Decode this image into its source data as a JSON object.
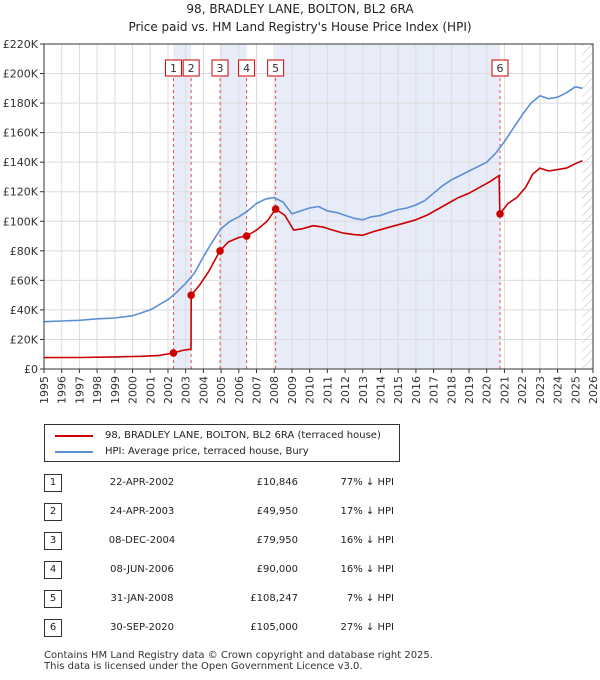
{
  "chart_data": {
    "type": "line",
    "title": "98, BRADLEY LANE, BOLTON, BL2 6RA",
    "subtitle": "Price paid vs. HM Land Registry's House Price Index (HPI)",
    "xlabel": "",
    "ylabel": "",
    "xlim": [
      1995,
      2026
    ],
    "ylim": [
      0,
      220000
    ],
    "x_ticks": [
      "1995",
      "1996",
      "1997",
      "1998",
      "1999",
      "2000",
      "2001",
      "2002",
      "2003",
      "2004",
      "2005",
      "2006",
      "2007",
      "2008",
      "2009",
      "2010",
      "2011",
      "2012",
      "2013",
      "2014",
      "2015",
      "2016",
      "2017",
      "2018",
      "2019",
      "2020",
      "2021",
      "2022",
      "2023",
      "2024",
      "2025",
      "2026"
    ],
    "y_ticks": [
      {
        "value": 0,
        "label": "£0"
      },
      {
        "value": 20000,
        "label": "£20K"
      },
      {
        "value": 40000,
        "label": "£40K"
      },
      {
        "value": 60000,
        "label": "£60K"
      },
      {
        "value": 80000,
        "label": "£80K"
      },
      {
        "value": 100000,
        "label": "£100K"
      },
      {
        "value": 120000,
        "label": "£120K"
      },
      {
        "value": 140000,
        "label": "£140K"
      },
      {
        "value": 160000,
        "label": "£160K"
      },
      {
        "value": 180000,
        "label": "£180K"
      },
      {
        "value": 200000,
        "label": "£200K"
      },
      {
        "value": 220000,
        "label": "£220K"
      }
    ],
    "grid": true,
    "series": [
      {
        "name": "98, BRADLEY LANE, BOLTON, BL2 6RA (terraced house)",
        "color": "#cc0000",
        "points": [
          [
            1995.0,
            7700
          ],
          [
            1997.0,
            7800
          ],
          [
            1999.0,
            8200
          ],
          [
            2000.5,
            8600
          ],
          [
            2001.5,
            9200
          ],
          [
            2002.3,
            10846
          ],
          [
            2002.8,
            12500
          ],
          [
            2003.3,
            13500
          ],
          [
            2003.31,
            49950
          ],
          [
            2003.8,
            57000
          ],
          [
            2004.3,
            66000
          ],
          [
            2004.93,
            79950
          ],
          [
            2005.4,
            86000
          ],
          [
            2006.0,
            89000
          ],
          [
            2006.44,
            90000
          ],
          [
            2007.0,
            94000
          ],
          [
            2007.6,
            100000
          ],
          [
            2008.08,
            108247
          ],
          [
            2008.6,
            104000
          ],
          [
            2009.1,
            94000
          ],
          [
            2009.6,
            95000
          ],
          [
            2010.2,
            97000
          ],
          [
            2010.8,
            96000
          ],
          [
            2011.3,
            94000
          ],
          [
            2011.9,
            92000
          ],
          [
            2012.5,
            91000
          ],
          [
            2013.0,
            90500
          ],
          [
            2013.6,
            93000
          ],
          [
            2014.2,
            95000
          ],
          [
            2014.8,
            97000
          ],
          [
            2015.4,
            99000
          ],
          [
            2016.0,
            101000
          ],
          [
            2016.6,
            104000
          ],
          [
            2017.2,
            108000
          ],
          [
            2017.8,
            112000
          ],
          [
            2018.4,
            116000
          ],
          [
            2019.0,
            119000
          ],
          [
            2019.6,
            123000
          ],
          [
            2020.2,
            127000
          ],
          [
            2020.7,
            131000
          ],
          [
            2020.745,
            105000
          ],
          [
            2021.2,
            112000
          ],
          [
            2021.7,
            116000
          ],
          [
            2022.2,
            123000
          ],
          [
            2022.6,
            132000
          ],
          [
            2023.0,
            136000
          ],
          [
            2023.5,
            134000
          ],
          [
            2024.0,
            135000
          ],
          [
            2024.5,
            136000
          ],
          [
            2025.0,
            139000
          ],
          [
            2025.4,
            141000
          ]
        ]
      },
      {
        "name": "HPI: Average price, terraced house, Bury",
        "color": "#5b8fd6",
        "points": [
          [
            1995.0,
            32000
          ],
          [
            1996.0,
            32500
          ],
          [
            1997.0,
            33000
          ],
          [
            1998.0,
            34000
          ],
          [
            1999.0,
            34500
          ],
          [
            2000.0,
            36000
          ],
          [
            2001.0,
            40000
          ],
          [
            2002.0,
            47000
          ],
          [
            2002.5,
            52000
          ],
          [
            2003.0,
            58000
          ],
          [
            2003.5,
            65000
          ],
          [
            2004.0,
            76000
          ],
          [
            2004.5,
            86000
          ],
          [
            2005.0,
            95000
          ],
          [
            2005.5,
            100000
          ],
          [
            2006.0,
            103000
          ],
          [
            2006.5,
            107000
          ],
          [
            2007.0,
            112000
          ],
          [
            2007.5,
            115000
          ],
          [
            2008.0,
            116000
          ],
          [
            2008.5,
            113000
          ],
          [
            2009.0,
            105000
          ],
          [
            2009.5,
            107000
          ],
          [
            2010.0,
            109000
          ],
          [
            2010.5,
            110000
          ],
          [
            2011.0,
            107000
          ],
          [
            2011.5,
            106000
          ],
          [
            2012.0,
            104000
          ],
          [
            2012.5,
            102000
          ],
          [
            2013.0,
            101000
          ],
          [
            2013.5,
            103000
          ],
          [
            2014.0,
            104000
          ],
          [
            2014.5,
            106000
          ],
          [
            2015.0,
            108000
          ],
          [
            2015.5,
            109000
          ],
          [
            2016.0,
            111000
          ],
          [
            2016.5,
            114000
          ],
          [
            2017.0,
            119000
          ],
          [
            2017.5,
            124000
          ],
          [
            2018.0,
            128000
          ],
          [
            2018.5,
            131000
          ],
          [
            2019.0,
            134000
          ],
          [
            2019.5,
            137000
          ],
          [
            2020.0,
            140000
          ],
          [
            2020.5,
            146000
          ],
          [
            2021.0,
            154000
          ],
          [
            2021.5,
            163000
          ],
          [
            2022.0,
            172000
          ],
          [
            2022.5,
            180000
          ],
          [
            2023.0,
            185000
          ],
          [
            2023.5,
            183000
          ],
          [
            2024.0,
            184000
          ],
          [
            2024.5,
            187000
          ],
          [
            2025.0,
            191000
          ],
          [
            2025.4,
            190000
          ]
        ]
      }
    ],
    "shaded_ranges": [
      [
        2002.3,
        2003.31
      ],
      [
        2004.93,
        2006.44
      ],
      [
        2008.08,
        2020.745
      ]
    ],
    "sales": [
      {
        "label": "1",
        "x": 2002.31,
        "price": 10846
      },
      {
        "label": "2",
        "x": 2003.31,
        "price": 49950
      },
      {
        "label": "3",
        "x": 2004.94,
        "price": 79950
      },
      {
        "label": "4",
        "x": 2006.44,
        "price": 90000
      },
      {
        "label": "5",
        "x": 2008.08,
        "price": 108247
      },
      {
        "label": "6",
        "x": 2020.75,
        "price": 105000
      }
    ],
    "future_hatch_from": 2025.4
  },
  "legend": {
    "property_label": "98, BRADLEY LANE, BOLTON, BL2 6RA (terraced house)",
    "hpi_label": "HPI: Average price, terraced house, Bury",
    "property_color": "#cc0000",
    "hpi_color": "#5b8fd6"
  },
  "transactions": [
    {
      "num": "1",
      "date": "22-APR-2002",
      "price": "£10,846",
      "hpi": "77% ↓ HPI"
    },
    {
      "num": "2",
      "date": "24-APR-2003",
      "price": "£49,950",
      "hpi": "17% ↓ HPI"
    },
    {
      "num": "3",
      "date": "08-DEC-2004",
      "price": "£79,950",
      "hpi": "16% ↓ HPI"
    },
    {
      "num": "4",
      "date": "08-JUN-2006",
      "price": "£90,000",
      "hpi": "16% ↓ HPI"
    },
    {
      "num": "5",
      "date": "31-JAN-2008",
      "price": "£108,247",
      "hpi": "7% ↓ HPI"
    },
    {
      "num": "6",
      "date": "30-SEP-2020",
      "price": "£105,000",
      "hpi": "27% ↓ HPI"
    }
  ],
  "footer": {
    "line1": "Contains HM Land Registry data © Crown copyright and database right 2025.",
    "line2": "This data is licensed under the Open Government Licence v3.0."
  }
}
